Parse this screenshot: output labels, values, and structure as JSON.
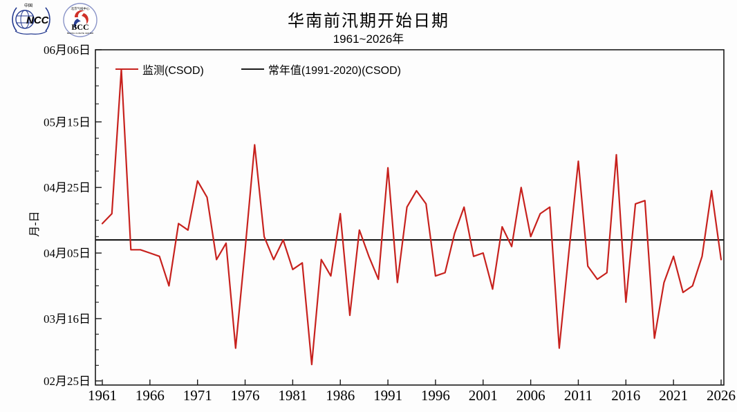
{
  "logos": {
    "ncc": {
      "text": "NCC",
      "top_text": "中国",
      "color": "#22388f"
    },
    "bcc": {
      "text": "BCC",
      "top_arc": "北京气候中心",
      "bottom_arc": "BEIJING CLIMATE CENTER",
      "navy": "#1e3a7a",
      "red": "#d03028"
    }
  },
  "normal_line": {
    "date": "04-09",
    "day_of_year": 99
  },
  "chart_data": {
    "type": "line",
    "title": "华南前汛期开始日期",
    "subtitle": "1961~2026年",
    "xlabel": "",
    "ylabel": "月-日",
    "x_range": [
      1961,
      2026
    ],
    "x_ticks": [
      1961,
      1966,
      1971,
      1976,
      1981,
      1986,
      1991,
      1996,
      2001,
      2006,
      2011,
      2016,
      2021,
      2026
    ],
    "y_ticks": [
      {
        "label": "06月06日",
        "day": 157
      },
      {
        "label": "05月15日",
        "day": 135
      },
      {
        "label": "04月25日",
        "day": 115
      },
      {
        "label": "04月05日",
        "day": 95
      },
      {
        "label": "03月16日",
        "day": 75
      },
      {
        "label": "02月25日",
        "day": 56
      }
    ],
    "grid": false,
    "legend_position": "top-left-inside",
    "years": [
      1961,
      1962,
      1963,
      1964,
      1965,
      1966,
      1967,
      1968,
      1969,
      1970,
      1971,
      1972,
      1973,
      1974,
      1975,
      1976,
      1977,
      1978,
      1979,
      1980,
      1981,
      1982,
      1983,
      1984,
      1985,
      1986,
      1987,
      1988,
      1989,
      1990,
      1991,
      1992,
      1993,
      1994,
      1995,
      1996,
      1997,
      1998,
      1999,
      2000,
      2001,
      2002,
      2003,
      2004,
      2005,
      2006,
      2007,
      2008,
      2009,
      2010,
      2011,
      2012,
      2013,
      2014,
      2015,
      2016,
      2017,
      2018,
      2019,
      2020,
      2021,
      2022,
      2023,
      2024,
      2025,
      2026
    ],
    "series": [
      {
        "name": "监测(CSOD)",
        "type": "line",
        "color": "#c7211d",
        "day_of_year": [
          104,
          107,
          151,
          96,
          96,
          95,
          94,
          85,
          104,
          102,
          117,
          112,
          93,
          98,
          66,
          96,
          128,
          100,
          93,
          99,
          90,
          92,
          61,
          93,
          88,
          107,
          76,
          102,
          94,
          87,
          121,
          86,
          109,
          114,
          110,
          88,
          89,
          101,
          109,
          94,
          95,
          84,
          103,
          97,
          115,
          100,
          107,
          109,
          66,
          95,
          123,
          91,
          87,
          89,
          125,
          80,
          110,
          111,
          69,
          86,
          94,
          83,
          85,
          94,
          114,
          93
        ],
        "dates": [
          "04-14",
          "04-17",
          "05-31",
          "04-06",
          "04-06",
          "04-05",
          "04-04",
          "03-26",
          "04-14",
          "04-12",
          "04-27",
          "04-22",
          "04-03",
          "04-08",
          "03-07",
          "04-06",
          "05-08",
          "04-10",
          "04-03",
          "04-09",
          "03-31",
          "04-02",
          "03-02",
          "04-03",
          "03-29",
          "04-17",
          "03-17",
          "04-12",
          "04-04",
          "03-28",
          "05-01",
          "03-27",
          "04-19",
          "04-24",
          "04-20",
          "03-29",
          "03-30",
          "04-11",
          "04-19",
          "04-04",
          "04-05",
          "03-25",
          "04-13",
          "04-07",
          "04-25",
          "04-10",
          "04-17",
          "04-19",
          "03-07",
          "04-05",
          "05-03",
          "04-01",
          "03-28",
          "03-30",
          "05-05",
          "03-21",
          "04-20",
          "04-21",
          "03-10",
          "03-27",
          "04-04",
          "03-24",
          "03-26",
          "04-04",
          "04-24",
          "04-03"
        ]
      },
      {
        "name": "常年值(1991-2020)(CSOD)",
        "type": "constant-line",
        "color": "#1a1a1a",
        "day_of_year": 99,
        "date": "04-09"
      }
    ]
  }
}
